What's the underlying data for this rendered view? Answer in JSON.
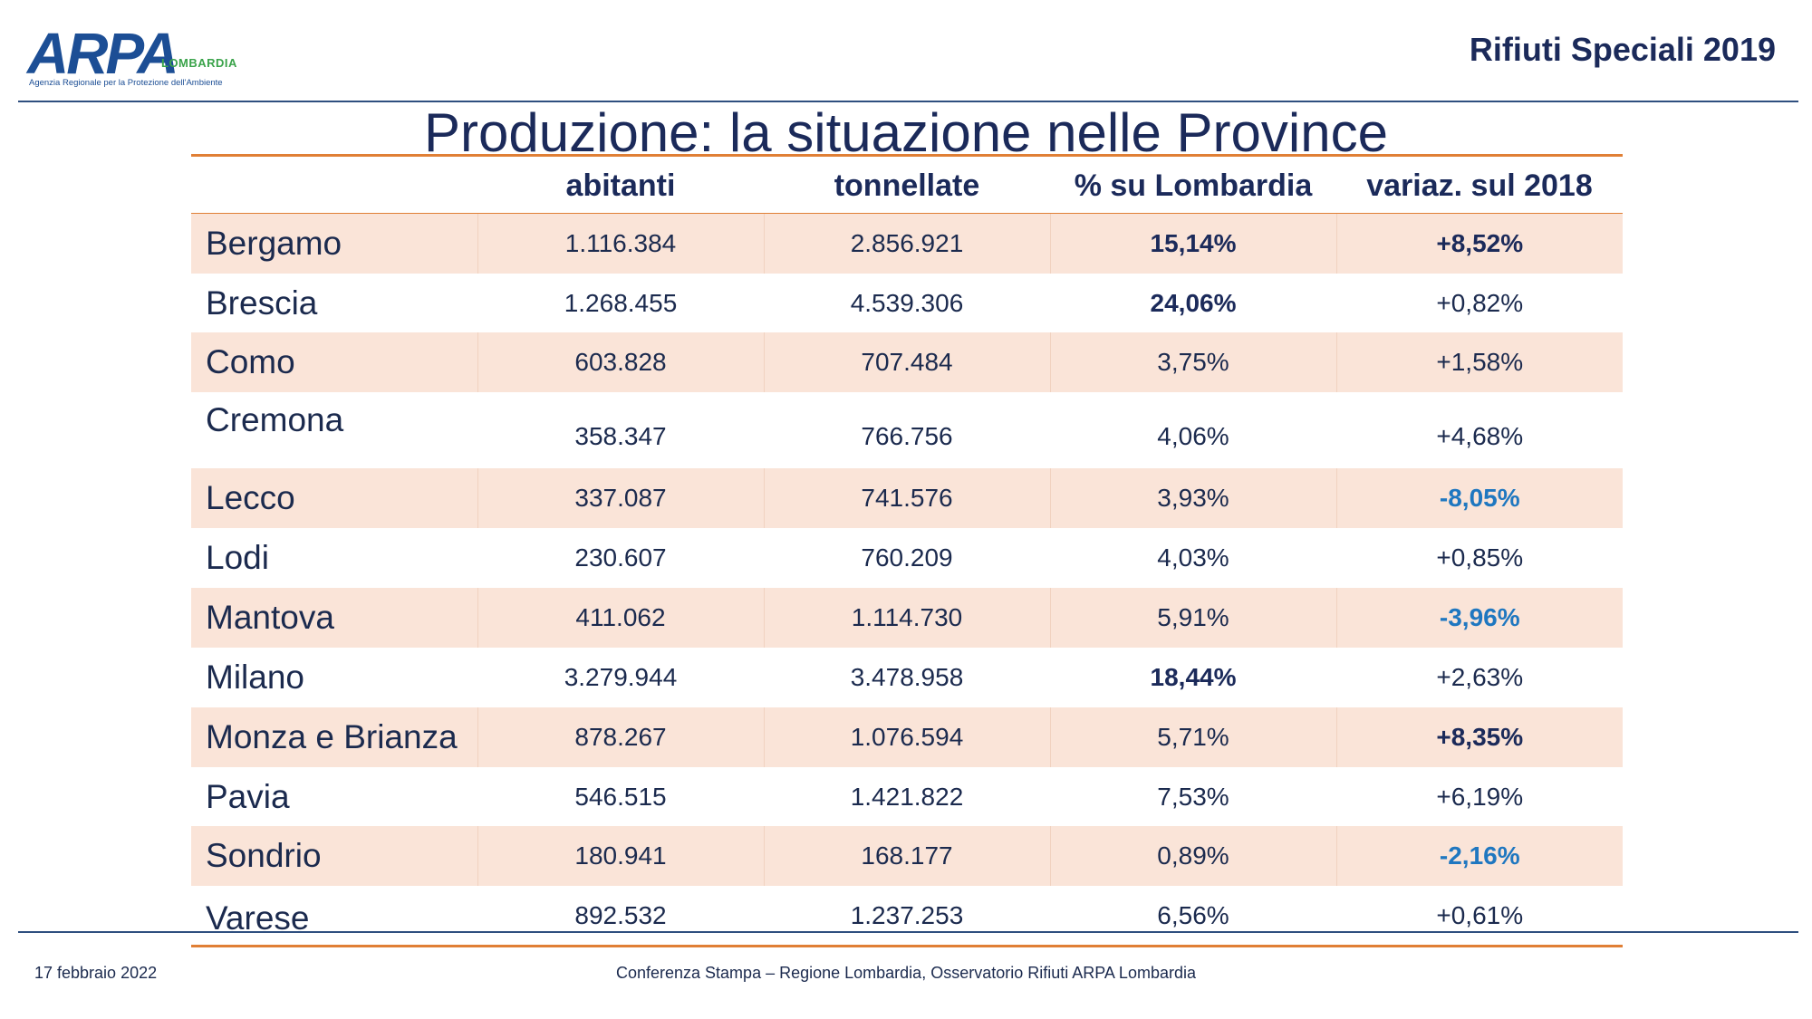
{
  "header": {
    "logo_text": "ARPA",
    "logo_region": "LOMBARDIA",
    "logo_agency": "Agenzia Regionale per la Protezione dell'Ambiente",
    "title": "Rifiuti Speciali 2019"
  },
  "page_title": "Produzione: la situazione nelle Province",
  "table": {
    "columns": [
      "",
      "abitanti",
      "tonnellate",
      "% su Lombardia",
      "variaz. sul 2018"
    ],
    "rows": [
      {
        "name": "Bergamo",
        "abitanti": "1.116.384",
        "tonnellate": "2.856.921",
        "pct": "15,14%",
        "var": "+8,52%"
      },
      {
        "name": "Brescia",
        "abitanti": "1.268.455",
        "tonnellate": "4.539.306",
        "pct": "24,06%",
        "var": "+0,82%"
      },
      {
        "name": "Como",
        "abitanti": "603.828",
        "tonnellate": "707.484",
        "pct": "3,75%",
        "var": "+1,58%"
      },
      {
        "name": "Cremona",
        "abitanti": "358.347",
        "tonnellate": "766.756",
        "pct": "4,06%",
        "var": "+4,68%"
      },
      {
        "name": "Lecco",
        "abitanti": "337.087",
        "tonnellate": "741.576",
        "pct": "3,93%",
        "var": "-8,05%"
      },
      {
        "name": "Lodi",
        "abitanti": "230.607",
        "tonnellate": "760.209",
        "pct": "4,03%",
        "var": "+0,85%"
      },
      {
        "name": "Mantova",
        "abitanti": "411.062",
        "tonnellate": "1.114.730",
        "pct": "5,91%",
        "var": "-3,96%"
      },
      {
        "name": "Milano",
        "abitanti": "3.279.944",
        "tonnellate": "3.478.958",
        "pct": "18,44%",
        "var": "+2,63%"
      },
      {
        "name": "Monza e Brianza",
        "abitanti": "878.267",
        "tonnellate": "1.076.594",
        "pct": "5,71%",
        "var": "+8,35%"
      },
      {
        "name": "Pavia",
        "abitanti": "546.515",
        "tonnellate": "1.421.822",
        "pct": "7,53%",
        "var": "+6,19%"
      },
      {
        "name": "Sondrio",
        "abitanti": "180.941",
        "tonnellate": "168.177",
        "pct": "0,89%",
        "var": "-2,16%"
      },
      {
        "name": "Varese",
        "abitanti": "892.532",
        "tonnellate": "1.237.253",
        "pct": "6,56%",
        "var": "+0,61%"
      }
    ]
  },
  "footer": {
    "date": "17 febbraio 2022",
    "source": "Conferenza Stampa – Regione Lombardia, Osservatorio Rifiuti  ARPA Lombardia"
  },
  "colors": {
    "orange_rule": "#e07f35",
    "row_band": "#fae4d8",
    "negative": "#1f77c0",
    "navy": "#1b2a5a"
  }
}
